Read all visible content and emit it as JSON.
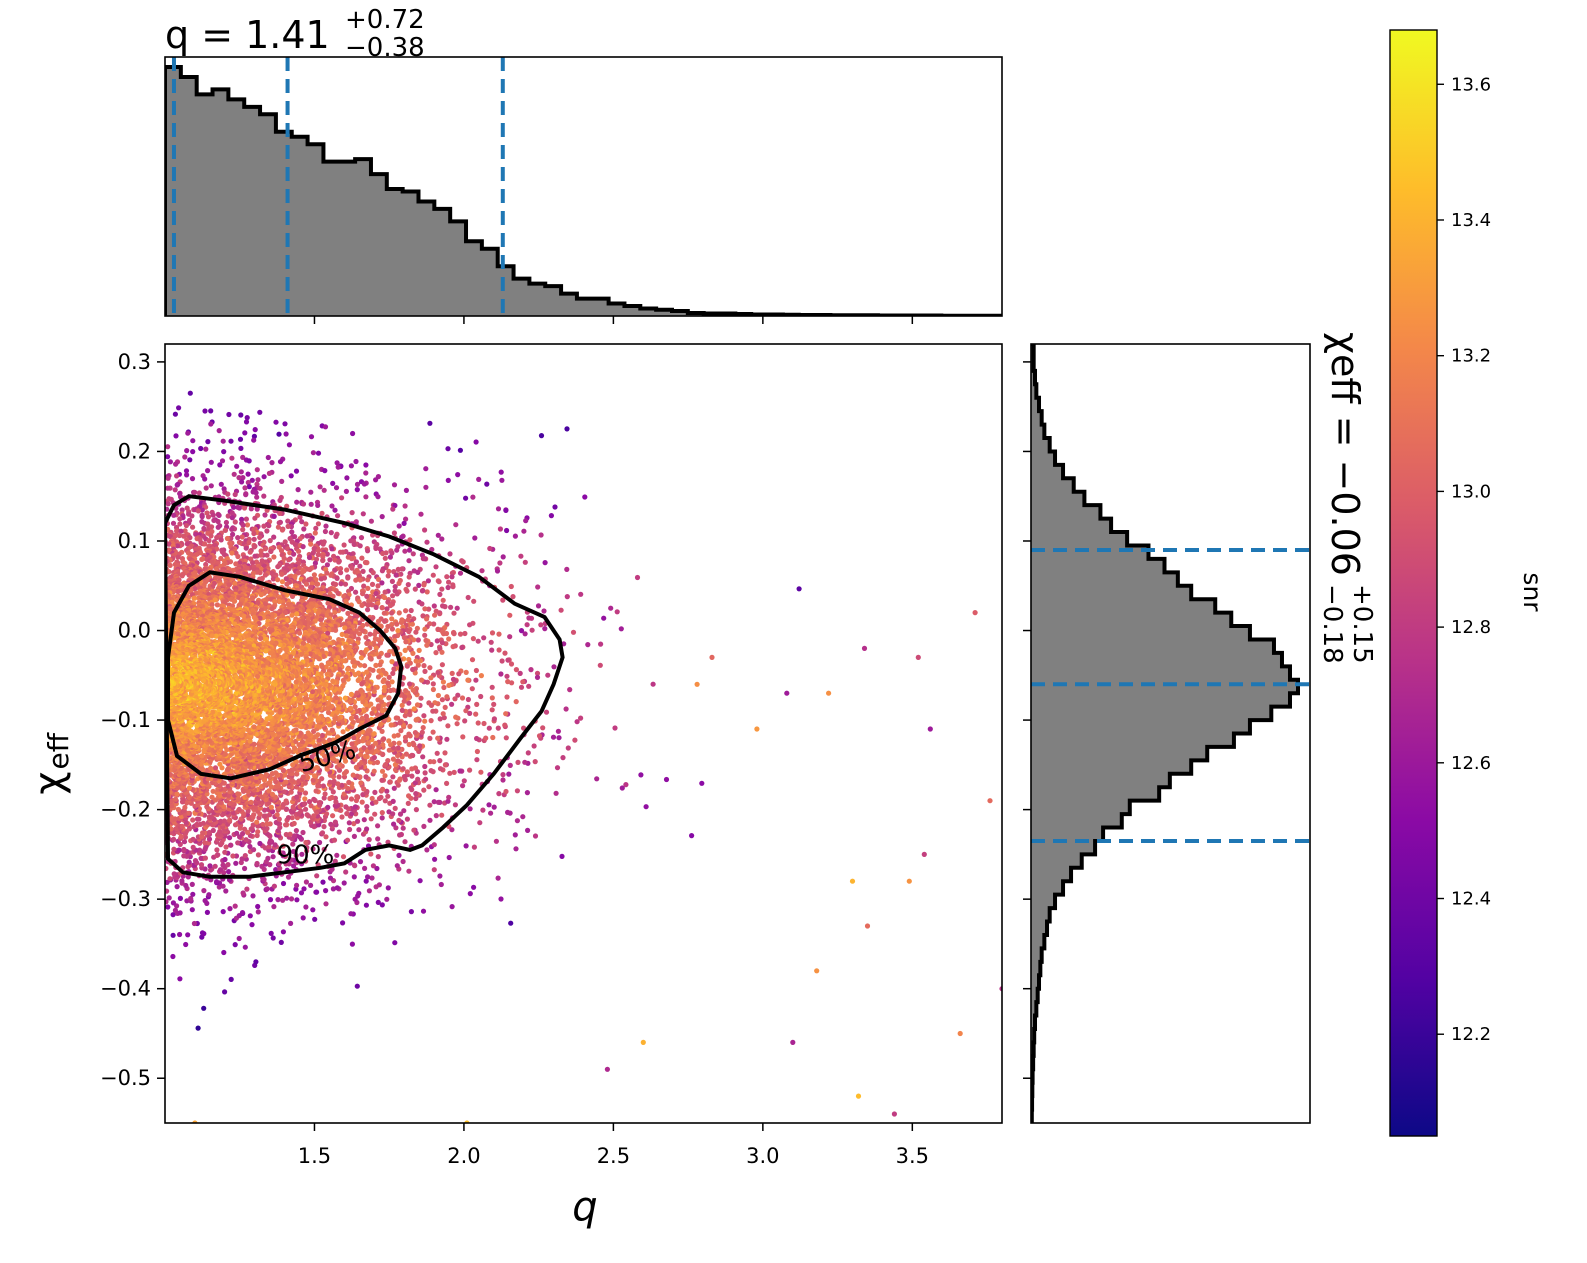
{
  "figure": {
    "top_title": {
      "main": "q = 1.41",
      "plus": "+0.72",
      "minus": "−0.38"
    },
    "right_title": {
      "main": "χeff = −0.06",
      "plus": "+0.15",
      "minus": "−0.18"
    }
  },
  "chart_data": [
    {
      "type": "scatter",
      "role": "joint",
      "xlabel": "q",
      "ylabel_main": "χ",
      "ylabel_sub": "eff",
      "xlim": [
        1.0,
        3.8
      ],
      "ylim": [
        -0.55,
        0.32
      ],
      "xticks": [
        1.5,
        2.0,
        2.5,
        3.0,
        3.5
      ],
      "xtick_labels": [
        "1.5",
        "2.0",
        "2.5",
        "3.0",
        "3.5"
      ],
      "yticks": [
        0.3,
        0.2,
        0.1,
        0.0,
        -0.1,
        -0.2,
        -0.3,
        -0.4,
        -0.5
      ],
      "ytick_labels": [
        "0.3",
        "0.2",
        "0.1",
        "0.0",
        "−0.1",
        "−0.2",
        "−0.3",
        "−0.4",
        "−0.5"
      ],
      "color_by": "snr",
      "point_distribution": {
        "x_mode": 1.0,
        "x_scale": 0.55,
        "y_mean": -0.06,
        "y_sd": 0.1
      },
      "outliers": [
        [
          3.71,
          0.02
        ],
        [
          3.76,
          -0.19
        ],
        [
          3.34,
          -0.02
        ],
        [
          3.52,
          -0.03
        ],
        [
          3.56,
          -0.11
        ],
        [
          3.66,
          -0.45
        ],
        [
          3.54,
          -0.25
        ],
        [
          3.49,
          -0.28
        ],
        [
          3.3,
          -0.28
        ],
        [
          3.35,
          -0.33
        ],
        [
          3.32,
          -0.52
        ],
        [
          3.44,
          -0.54
        ],
        [
          3.18,
          -0.38
        ],
        [
          3.08,
          -0.07
        ],
        [
          2.98,
          -0.11
        ],
        [
          3.8,
          -0.4
        ],
        [
          3.22,
          -0.07
        ],
        [
          2.83,
          -0.03
        ],
        [
          2.78,
          -0.06
        ],
        [
          3.1,
          -0.46
        ],
        [
          2.6,
          -0.46
        ],
        [
          2.48,
          -0.49
        ],
        [
          1.1,
          -0.55
        ],
        [
          2.01,
          -0.55
        ]
      ],
      "contours": [
        {
          "label": "50%",
          "label_at": [
            1.55,
            -0.15
          ],
          "label_rotation": -15,
          "path": [
            [
              1.01,
              -0.03
            ],
            [
              1.03,
              0.02
            ],
            [
              1.08,
              0.05
            ],
            [
              1.15,
              0.065
            ],
            [
              1.25,
              0.06
            ],
            [
              1.4,
              0.045
            ],
            [
              1.55,
              0.035
            ],
            [
              1.65,
              0.02
            ],
            [
              1.72,
              0.0
            ],
            [
              1.77,
              -0.02
            ],
            [
              1.79,
              -0.04
            ],
            [
              1.78,
              -0.07
            ],
            [
              1.74,
              -0.095
            ],
            [
              1.65,
              -0.11
            ],
            [
              1.57,
              -0.125
            ],
            [
              1.45,
              -0.14
            ],
            [
              1.35,
              -0.155
            ],
            [
              1.22,
              -0.165
            ],
            [
              1.12,
              -0.16
            ],
            [
              1.04,
              -0.14
            ],
            [
              1.01,
              -0.1
            ],
            [
              1.01,
              -0.07
            ]
          ]
        },
        {
          "label": "90%",
          "label_at": [
            1.47,
            -0.26
          ],
          "label_rotation": 0,
          "path": [
            [
              1.0,
              0.12
            ],
            [
              1.03,
              0.14
            ],
            [
              1.08,
              0.15
            ],
            [
              1.2,
              0.145
            ],
            [
              1.4,
              0.135
            ],
            [
              1.6,
              0.12
            ],
            [
              1.75,
              0.105
            ],
            [
              1.9,
              0.085
            ],
            [
              2.05,
              0.06
            ],
            [
              2.17,
              0.03
            ],
            [
              2.27,
              0.015
            ],
            [
              2.32,
              -0.01
            ],
            [
              2.33,
              -0.03
            ],
            [
              2.3,
              -0.06
            ],
            [
              2.26,
              -0.09
            ],
            [
              2.19,
              -0.12
            ],
            [
              2.1,
              -0.16
            ],
            [
              2.01,
              -0.195
            ],
            [
              1.93,
              -0.22
            ],
            [
              1.86,
              -0.24
            ],
            [
              1.82,
              -0.245
            ],
            [
              1.75,
              -0.24
            ],
            [
              1.67,
              -0.245
            ],
            [
              1.6,
              -0.26
            ],
            [
              1.52,
              -0.265
            ],
            [
              1.4,
              -0.27
            ],
            [
              1.28,
              -0.275
            ],
            [
              1.15,
              -0.275
            ],
            [
              1.06,
              -0.27
            ],
            [
              1.01,
              -0.255
            ]
          ]
        }
      ]
    },
    {
      "type": "bar",
      "role": "marginal-histogram-q",
      "xlim": [
        1.0,
        3.8
      ],
      "bin_edges": [
        1.0,
        1.053,
        1.106,
        1.159,
        1.212,
        1.265,
        1.318,
        1.371,
        1.424,
        1.477,
        1.53,
        1.583,
        1.636,
        1.689,
        1.742,
        1.795,
        1.848,
        1.901,
        1.954,
        2.007,
        2.06,
        2.113,
        2.166,
        2.219,
        2.272,
        2.325,
        2.378,
        2.431,
        2.484,
        2.537,
        2.59,
        2.643,
        2.696,
        2.749,
        2.802,
        2.855,
        2.908,
        2.961,
        3.014,
        3.067,
        3.12,
        3.173,
        3.226,
        3.279,
        3.332,
        3.385,
        3.438,
        3.491,
        3.544,
        3.597,
        3.65,
        3.703,
        3.756,
        3.809
      ],
      "values": [
        1.0,
        0.96,
        0.89,
        0.91,
        0.87,
        0.84,
        0.81,
        0.74,
        0.72,
        0.69,
        0.62,
        0.62,
        0.63,
        0.57,
        0.51,
        0.5,
        0.46,
        0.43,
        0.38,
        0.3,
        0.27,
        0.2,
        0.15,
        0.13,
        0.12,
        0.09,
        0.07,
        0.07,
        0.05,
        0.04,
        0.03,
        0.025,
        0.02,
        0.012,
        0.01,
        0.01,
        0.008,
        0.006,
        0.006,
        0.005,
        0.004,
        0.004,
        0.003,
        0.003,
        0.003,
        0.002,
        0.002,
        0.002,
        0.002,
        0.001,
        0.001,
        0.001,
        0.001
      ],
      "quantiles": [
        1.03,
        1.41,
        2.13
      ]
    },
    {
      "type": "bar",
      "role": "marginal-histogram-chi-eff",
      "orientation": "horizontal",
      "ylim": [
        -0.55,
        0.32
      ],
      "bin_edges": [
        0.32,
        0.305,
        0.29,
        0.275,
        0.26,
        0.245,
        0.23,
        0.215,
        0.2,
        0.185,
        0.17,
        0.155,
        0.14,
        0.125,
        0.11,
        0.095,
        0.08,
        0.065,
        0.05,
        0.035,
        0.02,
        0.005,
        -0.01,
        -0.025,
        -0.04,
        -0.055,
        -0.07,
        -0.085,
        -0.1,
        -0.115,
        -0.13,
        -0.145,
        -0.16,
        -0.175,
        -0.19,
        -0.205,
        -0.22,
        -0.235,
        -0.25,
        -0.265,
        -0.28,
        -0.295,
        -0.31,
        -0.325,
        -0.34,
        -0.355,
        -0.37,
        -0.385,
        -0.4,
        -0.415,
        -0.43,
        -0.445,
        -0.46,
        -0.475,
        -0.49,
        -0.505,
        -0.52,
        -0.535,
        -0.55
      ],
      "values": [
        0.01,
        0.01,
        0.015,
        0.02,
        0.03,
        0.04,
        0.05,
        0.07,
        0.09,
        0.12,
        0.16,
        0.2,
        0.26,
        0.3,
        0.36,
        0.44,
        0.5,
        0.55,
        0.6,
        0.69,
        0.75,
        0.82,
        0.91,
        0.94,
        0.97,
        1.0,
        0.97,
        0.9,
        0.82,
        0.76,
        0.66,
        0.6,
        0.52,
        0.48,
        0.37,
        0.34,
        0.27,
        0.24,
        0.19,
        0.15,
        0.12,
        0.09,
        0.07,
        0.06,
        0.05,
        0.04,
        0.035,
        0.03,
        0.025,
        0.02,
        0.015,
        0.012,
        0.01,
        0.008,
        0.006,
        0.005,
        0.004,
        0.003
      ],
      "quantiles": [
        0.09,
        -0.06,
        -0.235
      ]
    },
    {
      "type": "heatmap",
      "role": "colorbar",
      "label": "snr",
      "range": [
        12.05,
        13.68
      ],
      "ticks": [
        12.2,
        12.4,
        12.6,
        12.8,
        13.0,
        13.2,
        13.4,
        13.6
      ],
      "tick_labels": [
        "12.2",
        "12.4",
        "12.6",
        "12.8",
        "13.0",
        "13.2",
        "13.4",
        "13.6"
      ],
      "colormap": "plasma",
      "colormap_stops": [
        "#0d0887",
        "#5302a3",
        "#8b0aa5",
        "#b83289",
        "#db5c68",
        "#f48849",
        "#febd2a",
        "#f0f921"
      ],
      "hist_fill": "#808080",
      "quantile_color": "#1f77b4"
    }
  ]
}
